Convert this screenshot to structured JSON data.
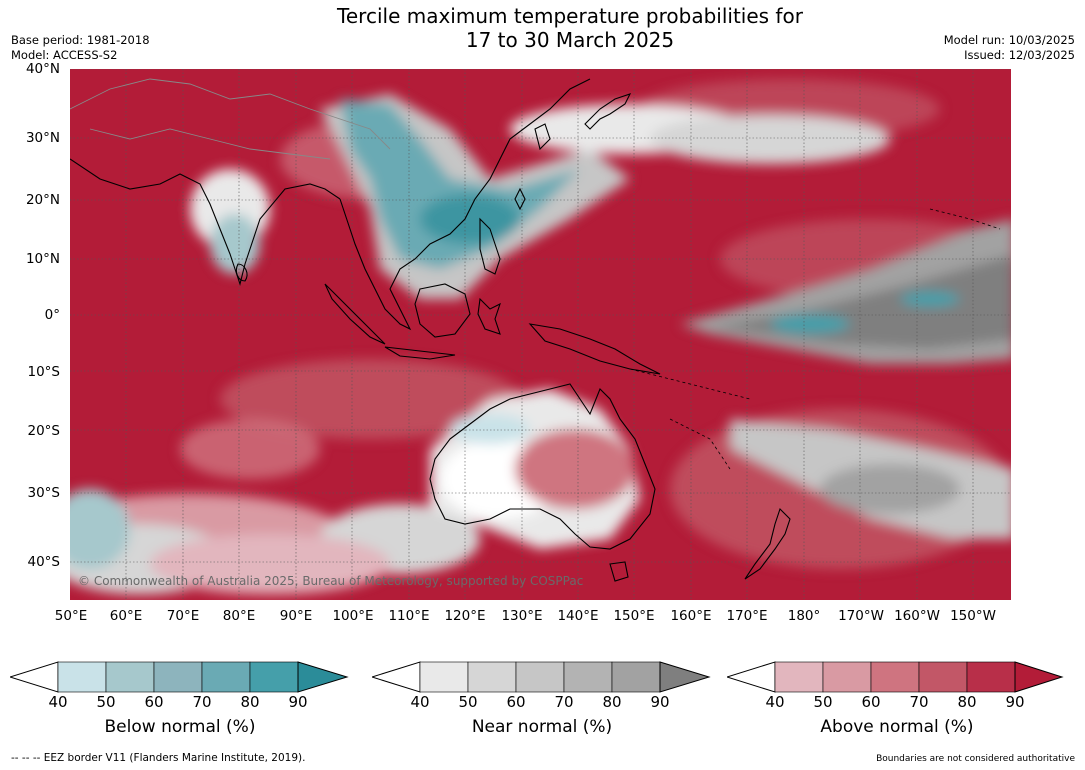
{
  "title_line1": "Tercile maximum temperature probabilities for",
  "title_line2": "17 to 30 March 2025",
  "base_period": "Base period: 1981-2018",
  "model": "Model: ACCESS-S2",
  "model_run": "Model run: 10/03/2025",
  "issued": "Issued: 12/03/2025",
  "lat_labels": [
    "40°N",
    "30°N",
    "20°N",
    "10°N",
    "0°",
    "10°S",
    "20°S",
    "30°S",
    "40°S"
  ],
  "lon_labels": [
    "50°E",
    "60°E",
    "70°E",
    "80°E",
    "90°E",
    "100°E",
    "110°E",
    "120°E",
    "130°E",
    "140°E",
    "150°E",
    "160°E",
    "170°E",
    "180°",
    "170°W",
    "160°W",
    "150°W"
  ],
  "copyright": "© Commonwealth of Australia 2025, Bureau of Meteorology, supported by COSPPac",
  "colorbars": [
    {
      "title": "Below normal (%)",
      "ticks": [
        "40",
        "50",
        "60",
        "70",
        "80",
        "90"
      ],
      "colors": [
        "#c9e2e8",
        "#a6c8cc",
        "#8db4bd",
        "#6aaab4",
        "#459faa",
        "#2b8c99"
      ]
    },
    {
      "title": "Near normal (%)",
      "ticks": [
        "40",
        "50",
        "60",
        "70",
        "80",
        "90"
      ],
      "colors": [
        "#e9e9e9",
        "#d6d6d6",
        "#c6c6c6",
        "#b3b3b3",
        "#a2a2a2",
        "#7f7f7f"
      ]
    },
    {
      "title": "Above normal (%)",
      "ticks": [
        "40",
        "50",
        "60",
        "70",
        "80",
        "90"
      ],
      "colors": [
        "#e2b6be",
        "#d99aa3",
        "#cf7480",
        "#c25767",
        "#b82f49",
        "#b31c38"
      ]
    }
  ],
  "footer_left": "--  --  -- EEZ border V11 (Flanders Marine Institute, 2019).",
  "footer_right": "Boundaries are not considered authoritative"
}
